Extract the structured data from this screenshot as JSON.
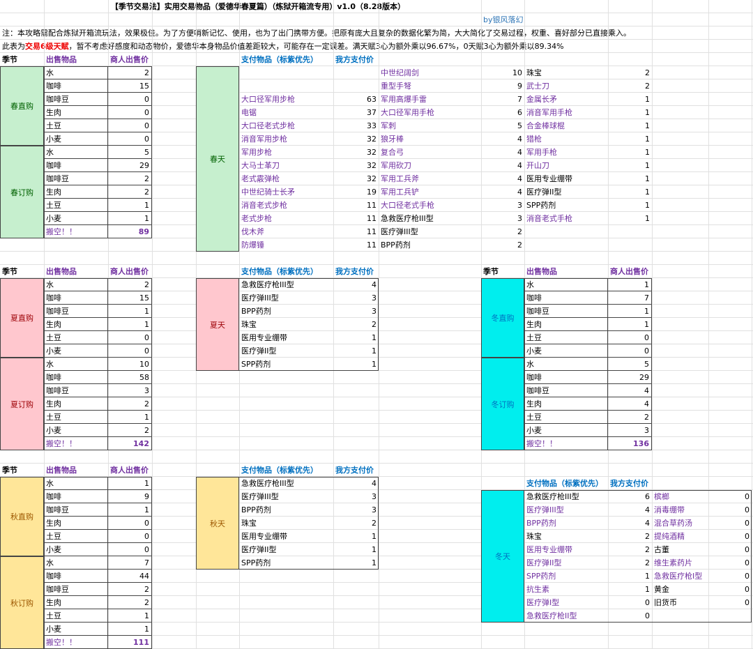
{
  "header": {
    "title": "【季节交易法】实用交易物品（爱德华春夏篇）（炼狱开箱流专用）v1.0（8.28版本）",
    "author": "by银风落幻",
    "note": "注：本攻略需配合炼狱开箱流玩法，效果极佳。为了方便哨新记忆、使用，也为了出门携带方便。把原有庞大且复杂的数据化繁为简，大大简化了交易过程，权重、喜好部分已直接乘入。",
    "note2": [
      "此表为",
      "交易6级天赋",
      "，暂不考虑好感度和动态物价，爱德华本身物品价值差距较大，可能存在一定误差。满天赋3心为额外乘以96.67%，0天赋3心为额外乘以89.34%"
    ]
  },
  "labels": {
    "season": "季节",
    "sell_item": "出售物品",
    "merchant_price": "商人出售价",
    "pay_item": "支付物品（标紫优先）",
    "our_price": "我方支付价",
    "clear": "搬空！！"
  },
  "seasons": [
    {
      "name": "春天",
      "color": "#c6efce",
      "text_color": "#006100",
      "buy": {
        "label": "春直购",
        "rows": [
          [
            "水",
            2
          ],
          [
            "咖啡",
            15
          ],
          [
            "咖啡豆",
            0
          ],
          [
            "生肉",
            0
          ],
          [
            "土豆",
            0
          ],
          [
            "小麦",
            0
          ]
        ]
      },
      "order": {
        "label": "春订购",
        "rows": [
          [
            "水",
            5
          ],
          [
            "咖啡",
            29
          ],
          [
            "咖啡豆",
            2
          ],
          [
            "生肉",
            2
          ],
          [
            "土豆",
            1
          ],
          [
            "小麦",
            1
          ]
        ],
        "total": 89
      },
      "pay": [
        [
          {
            "item": "大口径军用步枪",
            "price": 63,
            "color": "#7030a0"
          },
          {
            "item": "电锯",
            "price": 37,
            "color": "#7030a0"
          },
          {
            "item": "大口径老式步枪",
            "price": 33,
            "color": "#7030a0"
          },
          {
            "item": "消音军用步枪",
            "price": 32,
            "color": "#7030a0"
          },
          {
            "item": "军用步枪",
            "price": 32,
            "color": "#7030a0"
          },
          {
            "item": "大马士革刀",
            "price": 32,
            "color": "#7030a0"
          },
          {
            "item": "老式霰弹枪",
            "price": 32,
            "color": "#7030a0"
          },
          {
            "item": "中世纪骑士长矛",
            "price": 19,
            "color": "#7030a0"
          },
          {
            "item": "消音老式步枪",
            "price": 11,
            "color": "#7030a0"
          },
          {
            "item": "老式步枪",
            "price": 11,
            "color": "#7030a0"
          },
          {
            "item": "伐木斧",
            "price": 11,
            "color": "#7030a0"
          },
          {
            "item": "防爆锤",
            "price": 11,
            "color": "#7030a0"
          }
        ],
        [
          {
            "item": "中世纪阔剑",
            "price": 10,
            "color": "#7030a0"
          },
          {
            "item": "重型手弩",
            "price": 9,
            "color": "#7030a0"
          },
          {
            "item": "军用高爆手雷",
            "price": 7,
            "color": "#7030a0"
          },
          {
            "item": "大口径军用手枪",
            "price": 6,
            "color": "#7030a0"
          },
          {
            "item": "军刺",
            "price": 5,
            "color": "#7030a0"
          },
          {
            "item": "狼牙棒",
            "price": 4,
            "color": "#7030a0"
          },
          {
            "item": "复合弓",
            "price": 4,
            "color": "#7030a0"
          },
          {
            "item": "军用砍刀",
            "price": 4,
            "color": "#7030a0"
          },
          {
            "item": "军用工兵斧",
            "price": 4,
            "color": "#7030a0"
          },
          {
            "item": "军用工兵铲",
            "price": 4,
            "color": "#7030a0"
          },
          {
            "item": "大口径老式手枪",
            "price": 3,
            "color": "#7030a0"
          },
          {
            "item": "急救医疗枪III型",
            "price": 3,
            "color": "#000000"
          },
          {
            "item": "医疗弹III型",
            "price": 2,
            "color": "#000000"
          },
          {
            "item": "BPP药剂",
            "price": 2,
            "color": "#000000"
          }
        ],
        [
          {
            "item": "珠宝",
            "price": 2,
            "color": "#000000"
          },
          {
            "item": "武士刀",
            "price": 2,
            "color": "#7030a0"
          },
          {
            "item": "金属长矛",
            "price": 1,
            "color": "#7030a0"
          },
          {
            "item": "消音军用手枪",
            "price": 1,
            "color": "#7030a0"
          },
          {
            "item": "合金棒球棍",
            "price": 1,
            "color": "#7030a0"
          },
          {
            "item": "猎枪",
            "price": 1,
            "color": "#7030a0"
          },
          {
            "item": "军用手枪",
            "price": 1,
            "color": "#7030a0"
          },
          {
            "item": "开山刀",
            "price": 1,
            "color": "#7030a0"
          },
          {
            "item": "医用专业绷带",
            "price": 1,
            "color": "#000000"
          },
          {
            "item": "医疗弹II型",
            "price": 1,
            "color": "#000000"
          },
          {
            "item": "SPP药剂",
            "price": 1,
            "color": "#000000"
          },
          {
            "item": "消音老式手枪",
            "price": 1,
            "color": "#7030a0"
          }
        ]
      ]
    },
    {
      "name": "夏天",
      "color": "#ffc7ce",
      "text_color": "#9c0006",
      "buy": {
        "label": "夏直购",
        "rows": [
          [
            "水",
            2
          ],
          [
            "咖啡",
            15
          ],
          [
            "咖啡豆",
            1
          ],
          [
            "生肉",
            1
          ],
          [
            "土豆",
            0
          ],
          [
            "小麦",
            0
          ]
        ]
      },
      "order": {
        "label": "夏订购",
        "rows": [
          [
            "水",
            10
          ],
          [
            "咖啡",
            58
          ],
          [
            "咖啡豆",
            3
          ],
          [
            "生肉",
            2
          ],
          [
            "土豆",
            1
          ],
          [
            "小麦",
            2
          ]
        ],
        "total": 142
      },
      "pay": [
        [
          {
            "item": "急救医疗枪III型",
            "price": 4,
            "color": "#000000"
          },
          {
            "item": "医疗弹III型",
            "price": 3,
            "color": "#000000"
          },
          {
            "item": "BPP药剂",
            "price": 3,
            "color": "#000000"
          },
          {
            "item": "珠宝",
            "price": 2,
            "color": "#000000"
          },
          {
            "item": "医用专业绷带",
            "price": 1,
            "color": "#000000"
          },
          {
            "item": "医疗弹II型",
            "price": 1,
            "color": "#000000"
          },
          {
            "item": "SPP药剂",
            "price": 1,
            "color": "#000000"
          }
        ]
      ]
    },
    {
      "name": "秋天",
      "color": "#ffe699",
      "text_color": "#9c5700",
      "buy": {
        "label": "秋直购",
        "rows": [
          [
            "水",
            1
          ],
          [
            "咖啡",
            9
          ],
          [
            "咖啡豆",
            1
          ],
          [
            "生肉",
            0
          ],
          [
            "土豆",
            0
          ],
          [
            "小麦",
            0
          ]
        ]
      },
      "order": {
        "label": "秋订购",
        "rows": [
          [
            "水",
            7
          ],
          [
            "咖啡",
            44
          ],
          [
            "咖啡豆",
            2
          ],
          [
            "生肉",
            2
          ],
          [
            "土豆",
            1
          ],
          [
            "小麦",
            1
          ]
        ],
        "total": 111
      },
      "pay": [
        [
          {
            "item": "急救医疗枪III型",
            "price": 4,
            "color": "#000000"
          },
          {
            "item": "医疗弹III型",
            "price": 3,
            "color": "#000000"
          },
          {
            "item": "BPP药剂",
            "price": 3,
            "color": "#000000"
          },
          {
            "item": "珠宝",
            "price": 2,
            "color": "#000000"
          },
          {
            "item": "医用专业绷带",
            "price": 1,
            "color": "#000000"
          },
          {
            "item": "医疗弹II型",
            "price": 1,
            "color": "#000000"
          },
          {
            "item": "SPP药剂",
            "price": 1,
            "color": "#000000"
          }
        ]
      ]
    },
    {
      "name": "冬天",
      "color": "#00eeee",
      "text_color": "#0070c0",
      "buy": {
        "label": "冬直购",
        "rows": [
          [
            "水",
            1
          ],
          [
            "咖啡",
            7
          ],
          [
            "咖啡豆",
            1
          ],
          [
            "生肉",
            1
          ],
          [
            "土豆",
            0
          ],
          [
            "小麦",
            0
          ]
        ]
      },
      "order": {
        "label": "冬订购",
        "rows": [
          [
            "水",
            5
          ],
          [
            "咖啡",
            29
          ],
          [
            "咖啡豆",
            4
          ],
          [
            "生肉",
            4
          ],
          [
            "土豆",
            2
          ],
          [
            "小麦",
            3
          ]
        ],
        "total": 136
      },
      "pay": [
        [
          {
            "item": "急救医疗枪III型",
            "price": 6,
            "color": "#000000"
          },
          {
            "item": "医疗弹III型",
            "price": 4,
            "color": "#7030a0"
          },
          {
            "item": "BPP药剂",
            "price": 4,
            "color": "#7030a0"
          },
          {
            "item": "珠宝",
            "price": 2,
            "color": "#000000"
          },
          {
            "item": "医用专业绷带",
            "price": 2,
            "color": "#7030a0"
          },
          {
            "item": "医疗弹II型",
            "price": 2,
            "color": "#7030a0"
          },
          {
            "item": "SPP药剂",
            "price": 1,
            "color": "#7030a0"
          },
          {
            "item": "抗生素",
            "price": 1,
            "color": "#7030a0"
          },
          {
            "item": "医疗弹I型",
            "price": 0,
            "color": "#7030a0"
          },
          {
            "item": "急救医疗枪II型",
            "price": 0,
            "color": "#7030a0"
          }
        ],
        [
          {
            "item": "槟榔",
            "price": 0,
            "color": "#7030a0"
          },
          {
            "item": "消毒绷带",
            "price": 0,
            "color": "#7030a0"
          },
          {
            "item": "混合草药汤",
            "price": 0,
            "color": "#7030a0"
          },
          {
            "item": "提纯酒精",
            "price": 0,
            "color": "#7030a0"
          },
          {
            "item": "古董",
            "price": 0,
            "color": "#000000"
          },
          {
            "item": "维生素药片",
            "price": 0,
            "color": "#7030a0"
          },
          {
            "item": "急救医疗枪I型",
            "price": 0,
            "color": "#7030a0"
          },
          {
            "item": "黄金",
            "price": 0,
            "color": "#000000"
          },
          {
            "item": "旧货币",
            "price": 0,
            "color": "#000000"
          }
        ]
      ]
    }
  ]
}
